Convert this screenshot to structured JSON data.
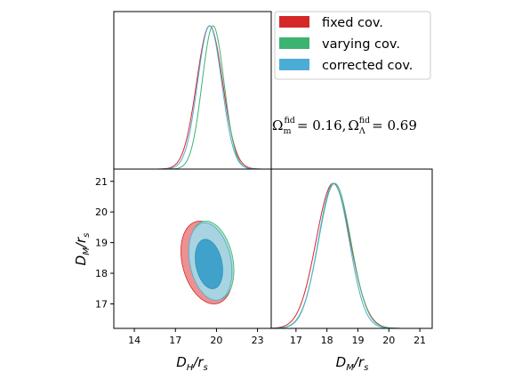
{
  "chart_data": {
    "type": "corner",
    "colors": {
      "fixed": "#d62728",
      "varying": "#3cb371",
      "corrected": "#4badd6",
      "corrected_inner": "#2a93bf",
      "fixed_fill": "#eb8a8c",
      "varying_fill": "#b2dfc3",
      "corrected_fill": "#a7d4e2",
      "corrected_inner_fill": "#3a9fc8"
    },
    "legend": {
      "position": "top-right",
      "entries": [
        {
          "key": "fixed",
          "label": "fixed cov."
        },
        {
          "key": "varying",
          "label": "varying cov."
        },
        {
          "key": "corrected",
          "label": "corrected cov."
        }
      ]
    },
    "annotation": {
      "omega_m": "Ω",
      "omega_m_sub": "m",
      "omega_m_sup": "fid",
      "omega_m_value": "= 0.16,",
      "omega_l": "Ω",
      "omega_l_sub": "Λ",
      "omega_l_sup": "fid",
      "omega_l_value": "= 0.69"
    },
    "params": [
      {
        "name": "DH",
        "label_main": "D",
        "label_sub": "H",
        "label_tail": "/r",
        "label_tail_sub": "s",
        "range": [
          12.5,
          24
        ]
      },
      {
        "name": "DM",
        "label_main": "D",
        "label_sub": "M",
        "label_tail": "/r",
        "label_tail_sub": "s",
        "range": [
          16.2,
          21.4
        ]
      }
    ],
    "panels": {
      "dh_marginal": {
        "xlim": [
          12.5,
          24
        ],
        "series": [
          {
            "key": "fixed",
            "mean": 19.5,
            "sigma": 0.95
          },
          {
            "key": "varying",
            "mean": 19.75,
            "sigma": 0.8
          },
          {
            "key": "corrected",
            "mean": 19.5,
            "sigma": 0.88
          }
        ]
      },
      "dm_marginal": {
        "xlim": [
          16.2,
          21.4
        ],
        "xticks": [
          17,
          18,
          19,
          20,
          21
        ],
        "series": [
          {
            "key": "fixed",
            "mean": 18.2,
            "sigma": 0.55
          },
          {
            "key": "varying",
            "mean": 18.25,
            "sigma": 0.52
          },
          {
            "key": "corrected",
            "mean": 18.22,
            "sigma": 0.5
          }
        ]
      },
      "joint": {
        "xlim": [
          12.5,
          24
        ],
        "ylim": [
          16.2,
          21.4
        ],
        "xticks": [
          14,
          17,
          20,
          23
        ],
        "yticks": [
          17,
          18,
          19,
          20,
          21
        ],
        "contours": [
          {
            "key": "fixed",
            "level": "95%",
            "cx": 19.3,
            "cy": 18.35,
            "sx": 2.0,
            "sy": 1.3,
            "tilt": -0.32
          },
          {
            "key": "varying",
            "level": "95%",
            "cx": 19.65,
            "cy": 18.42,
            "sx": 1.7,
            "sy": 1.24,
            "tilt": -0.3
          },
          {
            "key": "corrected",
            "level": "95%",
            "cx": 19.55,
            "cy": 18.38,
            "sx": 1.65,
            "sy": 1.22,
            "tilt": -0.3
          },
          {
            "key": "corrected",
            "level": "68%",
            "cx": 19.45,
            "cy": 18.3,
            "sx": 1.05,
            "sy": 0.78,
            "tilt": -0.3
          }
        ]
      }
    }
  }
}
